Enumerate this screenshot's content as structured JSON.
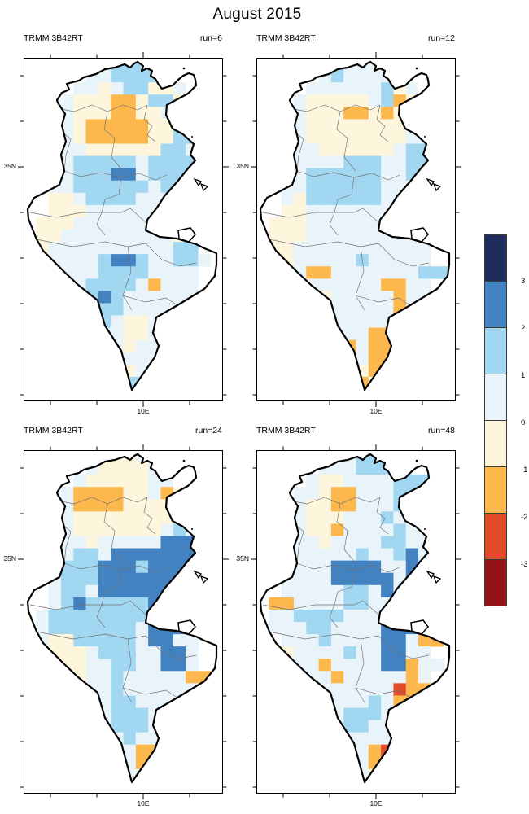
{
  "chart_data": {
    "type": "heatmap",
    "title": "August 2015",
    "panel_title": "TRMM 3B42RT",
    "runs": [
      "run=6",
      "run=12",
      "run=24",
      "run=48"
    ],
    "x_tick_label": "10E",
    "y_tick_label": "35N",
    "legend_position": "right",
    "colorbar": {
      "tick_labels": [
        "3",
        "2",
        "1",
        "0",
        "-1",
        "-2",
        "-3"
      ],
      "colors": [
        "#1f2c5e",
        "#4282c1",
        "#a2d7f1",
        "#e9f4fa",
        "#fdf6dc",
        "#fcb84d",
        "#e24b2a",
        "#911418"
      ]
    },
    "palette": {
      "N": "#1f2c5e",
      "M": "#4282c1",
      "L": "#a2d7f1",
      "P": "#e9f4fa",
      "C": "#fdf6dc",
      "O": "#fcb84d",
      "R": "#e24b2a",
      "D": "#911418",
      "W": "#ffffff"
    },
    "cell_value_encoding": {
      "N": "above 3",
      "M": "2 to 3",
      "L": "1 to 2",
      "P": "0 to 1",
      "C": "-1 to 0",
      "O": "-2 to -1",
      "R": "-3 to -2",
      "D": "below -3"
    },
    "grids": [
      [
        "......PLLLP.....",
        ".....PPLLLLP....",
        "....PPCPLLCCP...",
        "...PCCCOOCLLCP..",
        "...PCCCOOCCPCP..",
        "...PCOOOOOCCLL..",
        "...PCOOOOOCCLL..",
        "...PPCCCCCCLLP..",
        "..PPLLLLLPLLLLP.",
        "..PPLLLMMPLLLLP.",
        "..PPLLLLLLPLLP..",
        "..CCPLLLLPPPPP..",
        "..CCCPPPPPPPPP..",
        ".CCCPPPPPPPPPP..",
        ".CCPPPPPPPPPCP..",
        ".CPPPPPPPPPPLL..",
        ".PPPPPLMMLPPLLP.",
        ".PPPPPLLLLPPPP..",
        "..PPPLLLLPOPPP..",
        "..PPPLMLPPPPPP..",
        "...PPLLLPPPPPP..",
        "....PLLPCCPPP...",
        ".....PPPCCPPP...",
        ".....PPPCPPPP...",
        "......PCPPPP....",
        "......PCCPP.....",
        ".......PLLP.....",
        ".......LL......."
      ],
      [
        "......LPPP......",
        ".....PLPPPP.....",
        "....PPPPPPLCP...",
        "...PCCCCCPLOCP..",
        "...PCCCOOCOCPP..",
        "...PCCCCCCCCPP..",
        "...PCCCCCCCCPP..",
        "...PPCCCCCCPLL..",
        "..PPPPPLLLPPLLP.",
        "..PPLLLLLLPPLP..",
        "..PPLLLLLLPPPP..",
        "..PCLLLLLLPPPP..",
        "..CCPPPPPPPPPP..",
        ".CCCPPPPPPPPPP..",
        ".CCCPPPPPPPPPP..",
        ".CCPPPPPPPPPPP..",
        ".CCPPPPPLPPPPP..",
        "..PPOOPPPPPPPLLL",
        "...CPPPPPPOOPP..",
        "...CCCPPPPPOPP..",
        "....CCPPPPPOPP..",
        "....CCPPPPPPOP..",
        ".....CPPPOOCP...",
        ".....CPOPOOCP...",
        "......PCPOOC....",
        "......PCCOOP....",
        ".......POCP.....",
        ".......PPP......"
      ],
      [
        "......CCCP......",
        ".....PCCCCP.....",
        "....PCCCCCPP....",
        "...POOOOCCPOCP..",
        "...POOOOCCCCPP..",
        "...PCCCCCCCCPP..",
        "...PCCCCCCCPLP..",
        "...PPCPPPPPMMMP.",
        "..PPLLPMMMMMMMP.",
        "..PLLLMMMLMMMM..",
        "..PLLLMMMMMMMM..",
        "..PLLPMMMMMMMM..",
        "..PLMLLLLLMMMP..",
        ".PLLLLLLLLMMPP..",
        ".PLLLLLLLPMMMP..",
        ".PCCLLLLLPMMPP..",
        "..CCCPLLLPPMMP..",
        "..CCCPPLLPPMMP..",
        "...CCPPLPPPPPOO.",
        "...PCPPLPPPPPP..",
        "....PPPLLPPPPP..",
        "....PPPLLLPPPP..",
        ".....PPLLLPPP...",
        ".....PPPLPPPP...",
        "......PPPOOP....",
        "......PPPOOP....",
        ".......PPP......",
        ".......PP......."
      ],
      [
        "......PPLLP.....",
        ".....PPPLLLP....",
        "....PCCPPPPLLL..",
        "...PPCOOPPPLLLP.",
        "...PCCOOPPPLPLP.",
        "...PCCCPPPLPPP..",
        "...PCCOPPPPLPP..",
        "...PPCPPPPLLPP..",
        "..PPPPPPLPPLMP..",
        "..PPPPMMMMPPMP..",
        "..PPPPMMMMMPMP..",
        "..PPPPPLLPMPMP..",
        ".OOPPPPLLPPPPP..",
        ".PPLLLLPPPPPPM..",
        ".PPPLLPPPPMMMMP.",
        "..PPPLPPPPMMPOO.",
        "..CPPPPLPPMMPP..",
        "..CPPOPPPPMMOPP.",
        "...PPPOPPPPPOP..",
        "...PPPPPPPPROOO.",
        "....PPPPPLPOOP..",
        "....PPPLLLPPPP..",
        ".....PPLLPPPP...",
        ".....PPPPPPPP...",
        "......PPPORP....",
        "......PPPOOP....",
        ".......PPCP.....",
        ".......PP......."
      ]
    ]
  }
}
